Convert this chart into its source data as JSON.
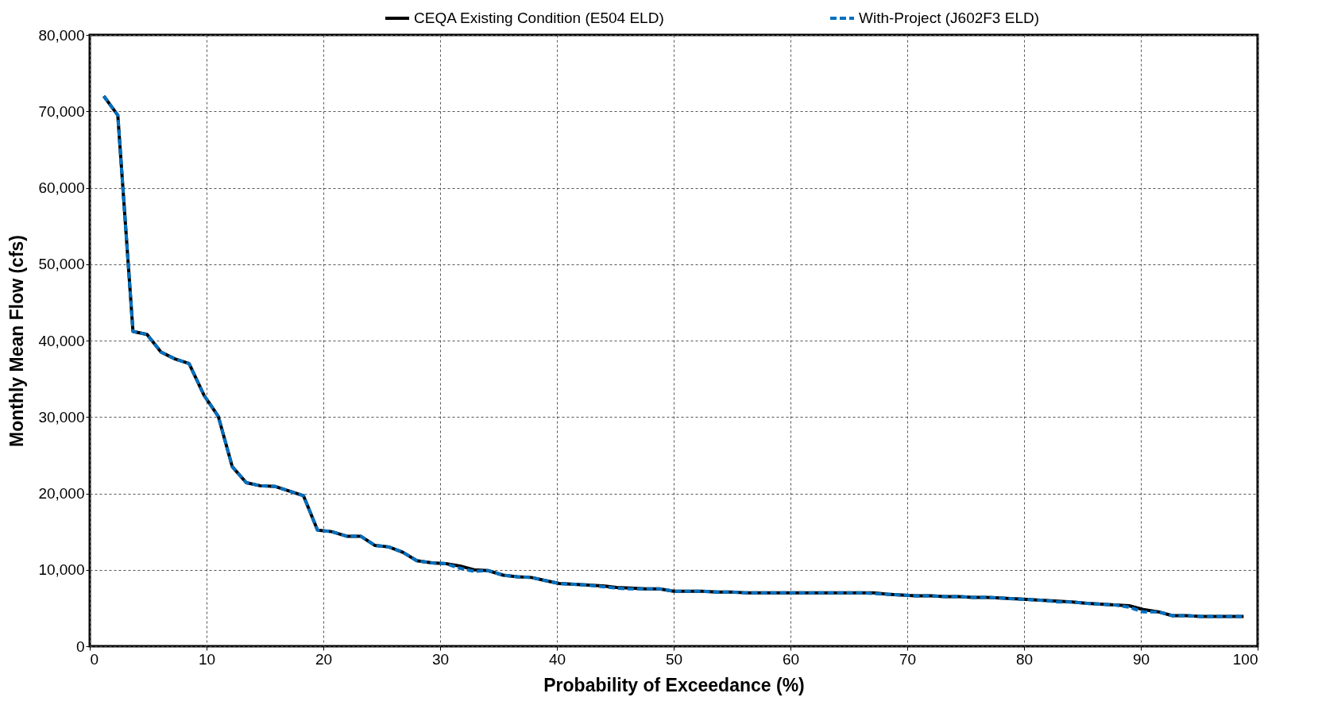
{
  "chart_data": {
    "type": "line",
    "xlabel": "Probability of Exceedance (%)",
    "ylabel": "Monthly Mean Flow (cfs)",
    "x": [
      1.2,
      2.4,
      3.7,
      4.9,
      6.1,
      7.3,
      8.5,
      9.8,
      11.0,
      12.2,
      13.4,
      14.6,
      15.9,
      17.1,
      18.3,
      19.5,
      20.7,
      22.0,
      23.2,
      24.4,
      25.6,
      26.8,
      28.0,
      29.3,
      30.5,
      31.7,
      32.9,
      34.1,
      35.4,
      36.6,
      37.8,
      39.0,
      40.2,
      41.5,
      42.7,
      43.9,
      45.1,
      46.3,
      47.6,
      48.8,
      50.0,
      51.2,
      52.4,
      53.7,
      54.9,
      56.1,
      57.3,
      58.5,
      59.8,
      61.0,
      62.2,
      63.4,
      64.6,
      65.9,
      67.1,
      68.3,
      69.5,
      70.7,
      72.0,
      73.2,
      74.4,
      75.6,
      76.8,
      78.0,
      79.3,
      80.5,
      81.7,
      82.9,
      84.1,
      85.4,
      86.6,
      87.8,
      89.0,
      90.2,
      91.5,
      92.7,
      93.9,
      95.1,
      96.3,
      97.6,
      98.8
    ],
    "series": [
      {
        "name": "CEQA Existing Condition (E504 ELD)",
        "color": "#000000",
        "line_style": "solid",
        "values": [
          72000,
          69500,
          41200,
          40800,
          38500,
          37600,
          37000,
          32800,
          30100,
          23500,
          21400,
          21000,
          20900,
          20300,
          19700,
          15200,
          15000,
          14400,
          14400,
          13200,
          13000,
          12300,
          11200,
          10900,
          10800,
          10500,
          10000,
          9900,
          9300,
          9100,
          9000,
          8600,
          8200,
          8100,
          8000,
          7900,
          7700,
          7600,
          7500,
          7500,
          7200,
          7200,
          7200,
          7100,
          7100,
          7000,
          7000,
          7000,
          7000,
          7000,
          7000,
          7000,
          7000,
          7000,
          7000,
          6800,
          6700,
          6600,
          6600,
          6500,
          6500,
          6400,
          6400,
          6300,
          6200,
          6100,
          6000,
          5900,
          5800,
          5600,
          5500,
          5400,
          5300,
          4800,
          4500,
          4000,
          4000,
          3900,
          3900,
          3900,
          3900
        ]
      },
      {
        "name": "With-Project (J602F3 ELD)",
        "color": "#0070c0",
        "line_style": "dashed",
        "values": [
          72000,
          69500,
          41200,
          40800,
          38500,
          37600,
          37000,
          32800,
          30100,
          23500,
          21400,
          21000,
          20900,
          20300,
          19700,
          15200,
          15000,
          14400,
          14400,
          13200,
          13000,
          12300,
          11200,
          10900,
          10800,
          10200,
          9800,
          9900,
          9300,
          9100,
          9000,
          8600,
          8200,
          8100,
          8000,
          7800,
          7600,
          7500,
          7500,
          7500,
          7200,
          7200,
          7200,
          7100,
          7100,
          7000,
          7000,
          7000,
          7000,
          7000,
          7000,
          7000,
          7000,
          7000,
          6900,
          6800,
          6700,
          6600,
          6600,
          6500,
          6500,
          6400,
          6400,
          6300,
          6200,
          6100,
          6000,
          5800,
          5800,
          5600,
          5500,
          5400,
          5100,
          4500,
          4500,
          4000,
          4000,
          3900,
          3900,
          3900,
          3900
        ]
      }
    ],
    "xlim": [
      0,
      100
    ],
    "xticks": [
      0,
      10,
      20,
      30,
      40,
      50,
      60,
      70,
      80,
      90,
      100
    ],
    "ylim": [
      0,
      80000
    ],
    "yticks": [
      0,
      {
        "value": 10000,
        "label": "10,000"
      },
      {
        "value": 20000,
        "label": "20,000"
      },
      {
        "value": 30000,
        "label": "30,000"
      },
      {
        "value": 40000,
        "label": "40,000"
      },
      {
        "value": 50000,
        "label": "50,000"
      },
      {
        "value": 60000,
        "label": "60,000"
      },
      {
        "value": 70000,
        "label": "70,000"
      },
      {
        "value": 80000,
        "label": "80,000"
      }
    ],
    "grid": true,
    "legend": "top",
    "marker": "none"
  }
}
